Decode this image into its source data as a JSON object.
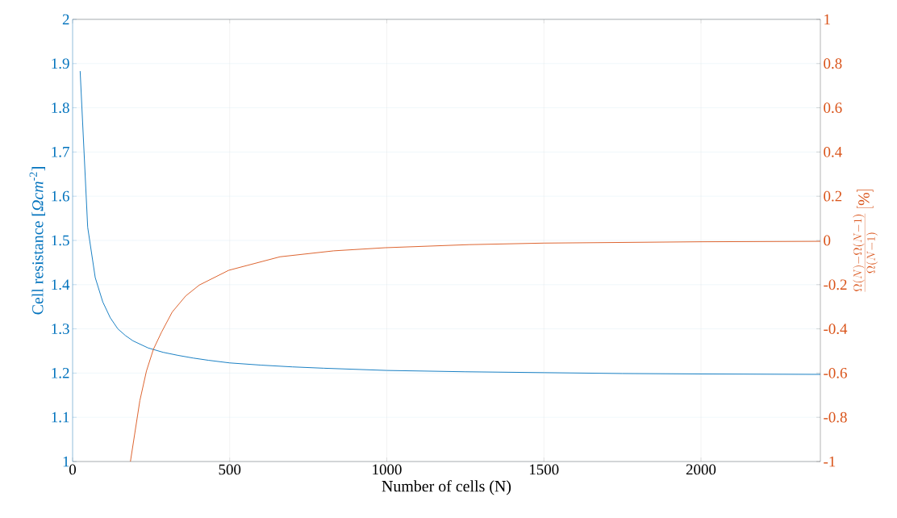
{
  "chart_data": {
    "type": "line",
    "xlabel": "Number of cells (N)",
    "ylabel": "Cell resistance [*Ωcm*$^{-2}$]",
    "y2label": "\\frac{\\Omega(N)-\\Omega(N-1)}{\\Omega(N-1)}\\,[\\%]",
    "xlim": [
      0,
      2380
    ],
    "xticks": [
      0,
      500,
      1000,
      1500,
      2000
    ],
    "ylim": [
      1,
      2
    ],
    "yticks": [
      1,
      1.1,
      1.2,
      1.3,
      1.4,
      1.5,
      1.6,
      1.7,
      1.8,
      1.9,
      2
    ],
    "y2lim": [
      -1,
      1
    ],
    "y2ticks": [
      -1,
      -0.8,
      -0.6,
      -0.4,
      -0.2,
      0,
      0.2,
      0.4,
      0.6,
      0.8,
      1
    ],
    "grid": true,
    "series": [
      {
        "color": "#0072bd",
        "axis": "y",
        "x": [
          24,
          48,
          72,
          96,
          120,
          144,
          168,
          192,
          240,
          288,
          336,
          384,
          432,
          500,
          600,
          700,
          800,
          1000,
          1250,
          1500,
          1750,
          2000,
          2380
        ],
        "values": [
          1.883,
          1.53,
          1.416,
          1.361,
          1.325,
          1.3,
          1.285,
          1.273,
          1.257,
          1.247,
          1.24,
          1.234,
          1.229,
          1.223,
          1.218,
          1.214,
          1.211,
          1.206,
          1.203,
          1.201,
          1.199,
          1.198,
          1.197
        ]
      },
      {
        "color": "#d95319",
        "axis": "y2",
        "x": [
          184,
          214,
          235,
          257,
          283,
          317,
          360,
          403,
          497,
          660,
          831,
          994,
          1261,
          1500,
          2000,
          2380
        ],
        "values": [
          -1.0,
          -0.725,
          -0.591,
          -0.493,
          -0.415,
          -0.324,
          -0.251,
          -0.202,
          -0.135,
          -0.074,
          -0.047,
          -0.033,
          -0.019,
          -0.012,
          -0.006,
          -0.004
        ]
      }
    ]
  }
}
